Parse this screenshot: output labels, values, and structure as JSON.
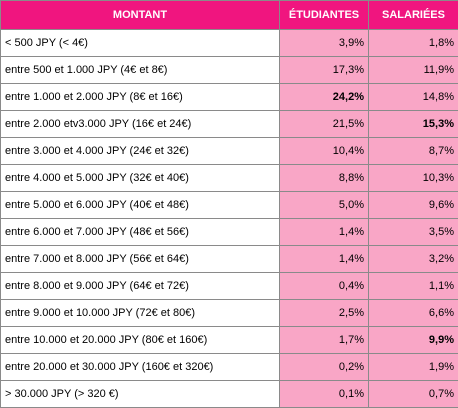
{
  "headers": {
    "montant": "MONTANT",
    "etudiants": "ÉTUDIANTES",
    "salariees": "SALARIÉES"
  },
  "rows": [
    {
      "montant": "< 500 JPY (< 4€)",
      "etudiants": "3,9%",
      "salariees": "1,8%"
    },
    {
      "montant": "entre 500 et 1.000 JPY (4€ et 8€)",
      "etudiants": "17,3%",
      "salariees": "11,9%"
    },
    {
      "montant": "entre 1.000 et 2.000 JPY (8€ et 16€)",
      "etudiants": "24,2%",
      "salariees": "14,8%"
    },
    {
      "montant": "entre 2.000 etv3.000 JPY (16€ et 24€)",
      "etudiants": "21,5%",
      "salariees": "15,3%"
    },
    {
      "montant": "entre 3.000 et 4.000 JPY (24€ et 32€)",
      "etudiants": "10,4%",
      "salariees": "8,7%"
    },
    {
      "montant": "entre 4.000 et 5.000 JPY (32€ et 40€)",
      "etudiants": "8,8%",
      "salariees": "10,3%"
    },
    {
      "montant": "entre 5.000 et 6.000 JPY (40€ et 48€)",
      "etudiants": "5,0%",
      "salariees": "9,6%"
    },
    {
      "montant": "entre 6.000 et 7.000 JPY (48€ et 56€)",
      "etudiants": "1,4%",
      "salariees": "3,5%"
    },
    {
      "montant": "entre 7.000 et 8.000 JPY (56€ et 64€)",
      "etudiants": "1,4%",
      "salariees": "3,2%"
    },
    {
      "montant": "entre 8.000 et 9.000 JPY (64€ et 72€)",
      "etudiants": "0,4%",
      "salariees": "1,1%"
    },
    {
      "montant": "entre 9.000 et 10.000 JPY (72€ et 80€)",
      "etudiants": "2,5%",
      "salariees": "6,6%"
    },
    {
      "montant": "entre 10.000 et 20.000 JPY (80€ et 160€)",
      "etudiants": "1,7%",
      "salariees": "9,9%"
    },
    {
      "montant": "entre 20.000 et 30.000 JPY (160€ et 320€)",
      "etudiants": "0,2%",
      "salariees": "1,9%"
    },
    {
      "montant": "> 30.000 JPY (> 320 €)",
      "etudiants": "0,1%",
      "salariees": "0,7%"
    }
  ]
}
